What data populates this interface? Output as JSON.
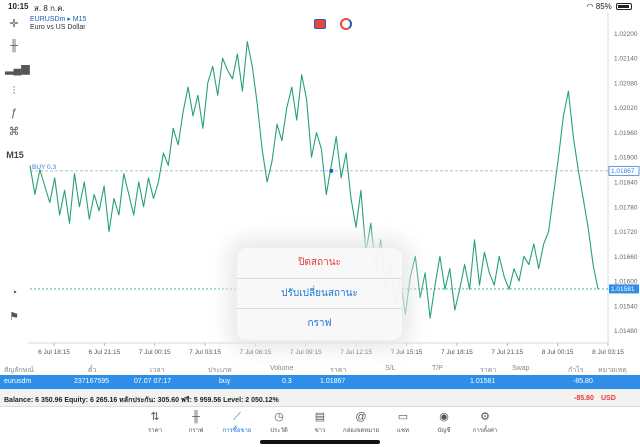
{
  "status": {
    "time": "10:15",
    "date": "ส. 8 ก.ค.",
    "battery": "85%"
  },
  "chart": {
    "symbol": "EURUSDm",
    "timeframe": "M15",
    "description": "Euro vs US Dollar",
    "line_color": "#26a07a",
    "buy_label": "BUY 0.3",
    "buy_price": "1.01867",
    "bid_price": "1.01581"
  },
  "toolbar": {
    "timeframe_label": "M15"
  },
  "chart_data": {
    "type": "line",
    "y_ticks": [
      "1.02200",
      "1.02140",
      "1.02080",
      "1.02020",
      "1.01960",
      "1.01900",
      "1.01840",
      "1.01780",
      "1.01720",
      "1.01660",
      "1.01600",
      "1.01540",
      "1.01480"
    ],
    "x_ticks": [
      "6 Jul 18:15",
      "6 Jul 21:15",
      "7 Jul 00:15",
      "7 Jul 03:15",
      "7 Jul 06:15",
      "7 Jul 09:15",
      "7 Jul 12:15",
      "7 Jul 15:15",
      "7 Jul 18:15",
      "7 Jul 21:15",
      "8 Jul 00:15",
      "8 Jul 03:15"
    ],
    "ylim": [
      1.0145,
      1.0223
    ],
    "grid": false,
    "values": [
      1.0188,
      1.0181,
      1.0187,
      1.0183,
      1.0179,
      1.0185,
      1.0176,
      1.0182,
      1.0174,
      1.0186,
      1.0178,
      1.0184,
      1.0175,
      1.0181,
      1.0177,
      1.0183,
      1.0172,
      1.018,
      1.0176,
      1.0186,
      1.0181,
      1.0176,
      1.0184,
      1.0178,
      1.0185,
      1.018,
      1.0184,
      1.0191,
      1.0188,
      1.0197,
      1.0193,
      1.0201,
      1.0207,
      1.02,
      1.0205,
      1.0197,
      1.0208,
      1.0212,
      1.0205,
      1.0214,
      1.0211,
      1.0209,
      1.0215,
      1.0206,
      1.0218,
      1.0212,
      1.0203,
      1.0192,
      1.0184,
      1.0189,
      1.0198,
      1.0194,
      1.0202,
      1.0207,
      1.0199,
      1.021,
      1.0204,
      1.019,
      1.0196,
      1.0192,
      1.0181,
      1.0188,
      1.0195,
      1.0185,
      1.0191,
      1.018,
      1.0173,
      1.0182,
      1.0167,
      1.0174,
      1.0163,
      1.017,
      1.0158,
      1.0164,
      1.0155,
      1.016,
      1.0152,
      1.0161,
      1.0166,
      1.0156,
      1.0162,
      1.0151,
      1.0159,
      1.0166,
      1.0158,
      1.0163,
      1.0153,
      1.0158,
      1.0164,
      1.0158,
      1.017,
      1.0159,
      1.0167,
      1.0162,
      1.0159,
      1.0166,
      1.0161,
      1.0158,
      1.0163,
      1.016,
      1.0166,
      1.0164,
      1.0169,
      1.0163,
      1.0169,
      1.0172,
      1.0181,
      1.019,
      1.02,
      1.0206,
      1.0195,
      1.0187,
      1.018,
      1.0173,
      1.0164,
      1.0158
    ]
  },
  "popup": {
    "close_position": "ปิดสถานะ",
    "modify_position": "ปรับเปลี่ยนสถานะ",
    "chart": "กราฟ"
  },
  "table": {
    "headers": [
      "สัญลักษณ์",
      "ตั๋ว",
      "เวลา",
      "ประเภท",
      "Volume",
      "ราคา",
      "S/L",
      "T/P",
      "ราคา",
      "Swap",
      "กำไร",
      "หมายเหตุ"
    ],
    "row": [
      "eurusdm",
      "237167595",
      "07.07 07:17",
      "buy",
      "0.3",
      "1.01867",
      "",
      "",
      "1.01581",
      "",
      "-85.80",
      ""
    ]
  },
  "balance": {
    "text": "Balance: 6 350.96 Equity: 6 265.16 หลักประกัน: 305.60 ฟรี: 5 959.56 Level: 2 050.12%",
    "profit": "-85.80",
    "currency": "USD"
  },
  "tabs": [
    {
      "label": "ราคา",
      "icon": "quotes-icon"
    },
    {
      "label": "กราฟ",
      "icon": "chart-icon"
    },
    {
      "label": "การซื้อขาย",
      "icon": "trade-icon"
    },
    {
      "label": "ประวัติ",
      "icon": "history-icon"
    },
    {
      "label": "ข่าว",
      "icon": "news-icon"
    },
    {
      "label": "กล่องจดหมาย",
      "icon": "mail-icon"
    },
    {
      "label": "แชท",
      "icon": "chat-icon"
    },
    {
      "label": "บัญชี",
      "icon": "account-icon"
    },
    {
      "label": "การตั้งค่า",
      "icon": "settings-icon"
    }
  ],
  "colors": {
    "accent": "#2f8fe8",
    "loss": "#e8393a",
    "line": "#26a07a"
  }
}
